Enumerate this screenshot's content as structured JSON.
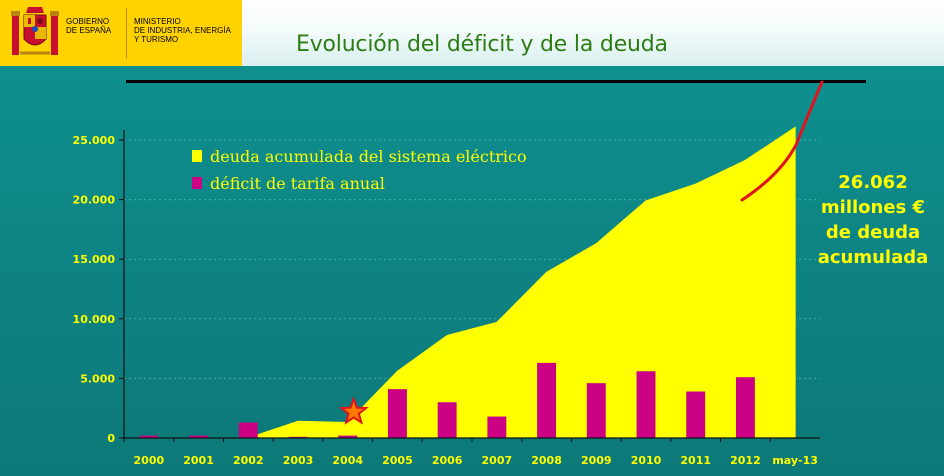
{
  "header": {
    "government": [
      "GOBIERNO",
      "DE ESPAÑA"
    ],
    "ministry": [
      "MINISTERIO",
      "DE INDUSTRIA, ENERGÍA",
      "Y TURISMO"
    ]
  },
  "title": "Evolución del déficit y de la deuda",
  "callout": [
    "26.062",
    "millones €",
    "de deuda",
    "acumulada"
  ],
  "colors": {
    "background": "#0e8a8a",
    "debt_area": "#ffff00",
    "deficit_bars": "#cc0084",
    "trend_arrow": "#e0141e",
    "title": "#2e7d14",
    "crest_red": "#c8102e",
    "gov_yellow": "#ffd200"
  },
  "icons": [
    "coat-of-arms-icon",
    "star-icon",
    "red-arrow-line"
  ],
  "chart_data": {
    "type": "area",
    "categories": [
      "2000",
      "2001",
      "2002",
      "2003",
      "2004",
      "2005",
      "2006",
      "2007",
      "2008",
      "2009",
      "2010",
      "2011",
      "2012",
      "may-13"
    ],
    "ylim": [
      0,
      25000
    ],
    "yticks": [
      0,
      5000,
      10000,
      15000,
      20000,
      25000
    ],
    "ytick_labels": [
      "0",
      "5.000",
      "10.000",
      "15.000",
      "20.000",
      "25.000"
    ],
    "grid": true,
    "legend_placement": "top-left",
    "annotations": [
      "star marker at 2004",
      "red hand-drawn arrow rising above may-13"
    ],
    "series": [
      {
        "name": "deuda acumulada del sistema eléctrico",
        "type": "area",
        "values": [
          null,
          null,
          0,
          1400,
          1300,
          5600,
          8600,
          9700,
          13900,
          16300,
          19900,
          21300,
          23300,
          26062
        ]
      },
      {
        "name": "déficit de tarifa anual",
        "type": "bar",
        "values": [
          200,
          200,
          1300,
          100,
          200,
          4100,
          3000,
          1800,
          6300,
          4600,
          5600,
          3900,
          5100,
          null
        ]
      }
    ]
  }
}
